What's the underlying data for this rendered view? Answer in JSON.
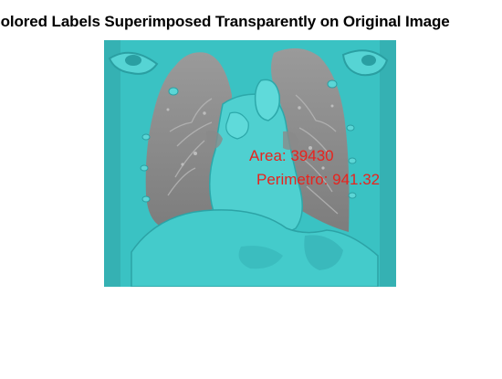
{
  "figure": {
    "title": "Colored Labels Superimposed Transparently on Original Image",
    "annotations": {
      "area": "Area: 39430",
      "perimeter": "Perimetro: 941.32"
    },
    "colors": {
      "overlay": "#3cc8c8",
      "lung": "#8a8a8a",
      "annotation_text": "#e8231e"
    }
  }
}
